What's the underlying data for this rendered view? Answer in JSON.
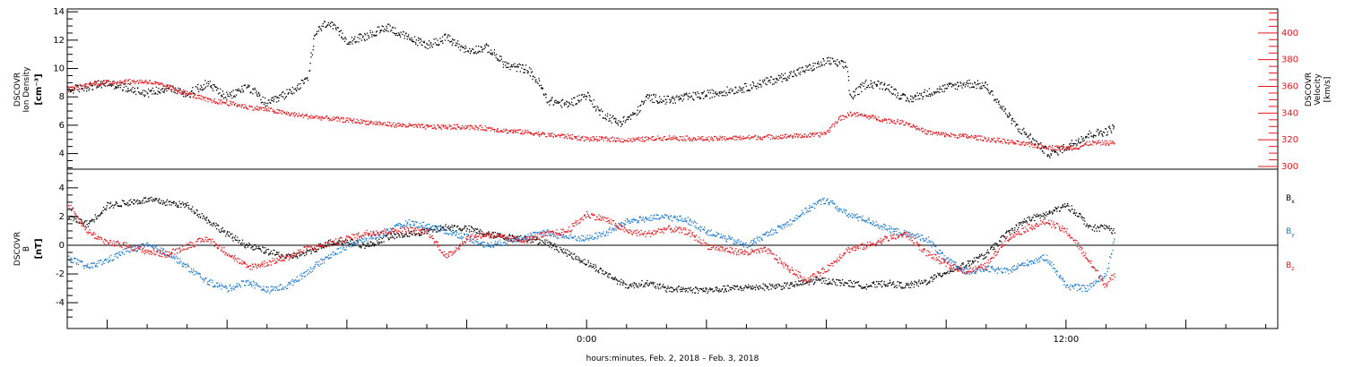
{
  "chart_data": [
    {
      "type": "scatter",
      "panel": "top",
      "title": "",
      "xlabel": "",
      "ylabel_left": {
        "line1": "DSCOVR",
        "line2": "Ion Density",
        "units": "[cm⁻³]"
      },
      "ylabel_right": {
        "line1": "DSCOVR",
        "line2": "Velocity",
        "units": "[km/s]"
      },
      "ylim_left": [
        2.9,
        14.2
      ],
      "ylim_right": [
        298,
        418
      ],
      "yticks_left": [
        4,
        6,
        8,
        10,
        12,
        14
      ],
      "yticks_right": [
        300,
        320,
        340,
        360,
        380,
        400
      ],
      "x_hours_range": [
        -13.0,
        17.3
      ],
      "series": [
        {
          "axis": "left",
          "color": "#000000",
          "points": [
            [
              -13.0,
              8.5
            ],
            [
              -12.0,
              9.0
            ],
            [
              -11.0,
              8.3
            ],
            [
              -10.5,
              8.7
            ],
            [
              -10.0,
              8.2
            ],
            [
              -9.5,
              9.0
            ],
            [
              -9.0,
              8.0
            ],
            [
              -8.5,
              8.8
            ],
            [
              -8.0,
              7.5
            ],
            [
              -7.5,
              8.3
            ],
            [
              -7.0,
              9.2
            ],
            [
              -6.8,
              12.5
            ],
            [
              -6.5,
              13.3
            ],
            [
              -6.0,
              12.0
            ],
            [
              -5.5,
              12.3
            ],
            [
              -5.0,
              13.0
            ],
            [
              -4.5,
              12.2
            ],
            [
              -4.0,
              11.7
            ],
            [
              -3.5,
              12.2
            ],
            [
              -3.0,
              11.3
            ],
            [
              -2.5,
              11.5
            ],
            [
              -2.0,
              10.2
            ],
            [
              -1.5,
              10.0
            ],
            [
              -1.2,
              9.0
            ],
            [
              -1.0,
              7.8
            ],
            [
              -0.5,
              7.5
            ],
            [
              0.0,
              8.2
            ],
            [
              0.3,
              7.0
            ],
            [
              0.8,
              6.2
            ],
            [
              1.2,
              6.8
            ],
            [
              1.5,
              8.0
            ],
            [
              2.0,
              7.8
            ],
            [
              3.0,
              8.2
            ],
            [
              4.0,
              8.7
            ],
            [
              5.0,
              9.5
            ],
            [
              5.8,
              10.3
            ],
            [
              6.0,
              10.6
            ],
            [
              6.5,
              10.2
            ],
            [
              6.6,
              8.0
            ],
            [
              7.0,
              9.0
            ],
            [
              7.5,
              8.8
            ],
            [
              8.0,
              7.8
            ],
            [
              8.5,
              8.3
            ],
            [
              9.0,
              8.7
            ],
            [
              9.5,
              9.0
            ],
            [
              10.0,
              8.8
            ],
            [
              10.4,
              7.2
            ],
            [
              10.8,
              5.8
            ],
            [
              11.0,
              5.4
            ],
            [
              11.3,
              4.6
            ],
            [
              11.6,
              4.0
            ],
            [
              12.0,
              4.5
            ],
            [
              12.3,
              5.0
            ],
            [
              12.6,
              5.4
            ],
            [
              13.0,
              5.6
            ],
            [
              13.2,
              5.9
            ]
          ]
        },
        {
          "axis": "right",
          "color": "#e8141b",
          "points": [
            [
              -13.0,
              358
            ],
            [
              -12.3,
              363
            ],
            [
              -11.5,
              364
            ],
            [
              -11.0,
              364
            ],
            [
              -10.5,
              360
            ],
            [
              -10.0,
              355
            ],
            [
              -9.5,
              350
            ],
            [
              -9.0,
              348
            ],
            [
              -8.5,
              345
            ],
            [
              -8.0,
              343
            ],
            [
              -7.5,
              340
            ],
            [
              -7.0,
              338
            ],
            [
              -6.0,
              335
            ],
            [
              -5.0,
              332
            ],
            [
              -4.0,
              330
            ],
            [
              -3.0,
              330
            ],
            [
              -2.5,
              329
            ],
            [
              -2.0,
              327
            ],
            [
              -1.5,
              326
            ],
            [
              -1.0,
              324
            ],
            [
              -0.5,
              323
            ],
            [
              0.0,
              321
            ],
            [
              0.5,
              321
            ],
            [
              1.0,
              320
            ],
            [
              2.0,
              322
            ],
            [
              3.0,
              321
            ],
            [
              4.0,
              322
            ],
            [
              5.0,
              323
            ],
            [
              5.8,
              324
            ],
            [
              6.0,
              326
            ],
            [
              6.3,
              336
            ],
            [
              6.6,
              340
            ],
            [
              7.0,
              338
            ],
            [
              7.5,
              335
            ],
            [
              8.0,
              333
            ],
            [
              8.5,
              326
            ],
            [
              9.0,
              324
            ],
            [
              9.5,
              323
            ],
            [
              10.0,
              321
            ],
            [
              10.5,
              319
            ],
            [
              11.0,
              317
            ],
            [
              11.5,
              315
            ],
            [
              12.0,
              314
            ],
            [
              12.3,
              315
            ],
            [
              12.6,
              318
            ],
            [
              13.0,
              318
            ],
            [
              13.2,
              318
            ]
          ]
        }
      ]
    },
    {
      "type": "scatter",
      "panel": "bottom",
      "title": "",
      "xlabel": "hours:minutes, Feb.  2, 2018 – Feb.  3, 2018",
      "ylabel_left": {
        "line1": "DSCOVR",
        "line2": "B",
        "units": "[nT]"
      },
      "ylim": [
        -5.8,
        5.3
      ],
      "yticks": [
        -4,
        -2,
        0,
        2,
        4
      ],
      "zero_line": true,
      "x_hours_range": [
        -13.0,
        17.3
      ],
      "xticks": [
        {
          "hour": 0.0,
          "label": "0:00"
        },
        {
          "hour": 12.0,
          "label": "12:00"
        }
      ],
      "series": [
        {
          "name": "Bx",
          "color": "#000000",
          "legend": {
            "base": "B",
            "sub": "x"
          },
          "points": [
            [
              -13.0,
              2.0
            ],
            [
              -12.5,
              1.5
            ],
            [
              -12.0,
              2.8
            ],
            [
              -11.0,
              3.2
            ],
            [
              -10.0,
              2.8
            ],
            [
              -9.5,
              1.8
            ],
            [
              -9.0,
              0.8
            ],
            [
              -8.5,
              0.0
            ],
            [
              -7.5,
              -0.8
            ],
            [
              -7.0,
              -0.5
            ],
            [
              -6.5,
              0.2
            ],
            [
              -6.0,
              0.3
            ],
            [
              -5.5,
              0.0
            ],
            [
              -5.0,
              0.6
            ],
            [
              -4.5,
              0.8
            ],
            [
              -4.0,
              1.0
            ],
            [
              -3.5,
              1.3
            ],
            [
              -3.0,
              1.2
            ],
            [
              -2.5,
              0.8
            ],
            [
              -2.0,
              0.6
            ],
            [
              -1.5,
              0.5
            ],
            [
              -1.0,
              0.2
            ],
            [
              -0.5,
              -0.5
            ],
            [
              0.0,
              -1.2
            ],
            [
              0.5,
              -2.0
            ],
            [
              1.0,
              -2.8
            ],
            [
              1.5,
              -2.6
            ],
            [
              2.0,
              -3.0
            ],
            [
              3.0,
              -3.1
            ],
            [
              4.0,
              -2.9
            ],
            [
              5.0,
              -2.8
            ],
            [
              5.8,
              -2.4
            ],
            [
              6.5,
              -2.6
            ],
            [
              7.0,
              -2.8
            ],
            [
              7.5,
              -2.6
            ],
            [
              8.0,
              -2.8
            ],
            [
              8.5,
              -2.5
            ],
            [
              9.0,
              -1.8
            ],
            [
              9.5,
              -1.3
            ],
            [
              10.0,
              -0.6
            ],
            [
              10.5,
              0.8
            ],
            [
              11.0,
              1.8
            ],
            [
              11.5,
              2.2
            ],
            [
              12.0,
              2.8
            ],
            [
              12.3,
              2.2
            ],
            [
              12.6,
              1.2
            ],
            [
              13.0,
              1.3
            ],
            [
              13.2,
              1.0
            ]
          ]
        },
        {
          "name": "By",
          "color": "#1a78d0",
          "legend": {
            "base": "B",
            "sub": "y"
          },
          "points": [
            [
              -13.0,
              -0.8
            ],
            [
              -12.5,
              -1.5
            ],
            [
              -12.0,
              -1.0
            ],
            [
              -11.5,
              -0.3
            ],
            [
              -11.0,
              0.0
            ],
            [
              -10.5,
              -0.5
            ],
            [
              -10.0,
              -1.5
            ],
            [
              -9.5,
              -2.5
            ],
            [
              -9.0,
              -3.0
            ],
            [
              -8.5,
              -2.5
            ],
            [
              -8.0,
              -3.1
            ],
            [
              -7.5,
              -2.8
            ],
            [
              -7.0,
              -1.8
            ],
            [
              -6.5,
              -0.8
            ],
            [
              -6.0,
              0.0
            ],
            [
              -5.5,
              0.5
            ],
            [
              -5.0,
              1.0
            ],
            [
              -4.5,
              1.6
            ],
            [
              -4.0,
              1.4
            ],
            [
              -3.5,
              1.0
            ],
            [
              -3.0,
              0.6
            ],
            [
              -2.5,
              0.0
            ],
            [
              -2.0,
              0.3
            ],
            [
              -1.5,
              0.7
            ],
            [
              -1.0,
              0.9
            ],
            [
              -0.5,
              0.6
            ],
            [
              0.0,
              0.5
            ],
            [
              0.5,
              0.9
            ],
            [
              1.0,
              1.7
            ],
            [
              1.5,
              1.9
            ],
            [
              2.0,
              2.0
            ],
            [
              2.5,
              1.8
            ],
            [
              3.0,
              1.0
            ],
            [
              3.5,
              0.5
            ],
            [
              4.0,
              0.0
            ],
            [
              4.5,
              0.8
            ],
            [
              5.0,
              1.5
            ],
            [
              5.5,
              2.5
            ],
            [
              5.8,
              3.0
            ],
            [
              6.0,
              3.2
            ],
            [
              6.5,
              2.2
            ],
            [
              7.0,
              1.8
            ],
            [
              7.5,
              1.2
            ],
            [
              8.0,
              0.8
            ],
            [
              8.5,
              0.5
            ],
            [
              9.0,
              -1.0
            ],
            [
              9.5,
              -1.8
            ],
            [
              10.0,
              -1.6
            ],
            [
              10.5,
              -1.8
            ],
            [
              11.0,
              -1.2
            ],
            [
              11.5,
              -0.8
            ],
            [
              12.0,
              -2.8
            ],
            [
              12.5,
              -3.0
            ],
            [
              13.0,
              -2.0
            ],
            [
              13.2,
              0.5
            ]
          ]
        },
        {
          "name": "Bz",
          "color": "#e8141b",
          "legend": {
            "base": "B",
            "sub": "z"
          },
          "points": [
            [
              -13.0,
              3.0
            ],
            [
              -12.5,
              1.0
            ],
            [
              -12.0,
              0.2
            ],
            [
              -11.5,
              0.0
            ],
            [
              -11.0,
              -0.4
            ],
            [
              -10.5,
              -0.6
            ],
            [
              -10.0,
              0.0
            ],
            [
              -9.5,
              0.5
            ],
            [
              -9.0,
              -0.5
            ],
            [
              -8.5,
              -1.5
            ],
            [
              -8.0,
              -1.2
            ],
            [
              -7.5,
              -0.8
            ],
            [
              -7.0,
              -0.2
            ],
            [
              -6.5,
              0.1
            ],
            [
              -6.0,
              0.5
            ],
            [
              -5.5,
              0.9
            ],
            [
              -5.0,
              1.0
            ],
            [
              -4.5,
              1.1
            ],
            [
              -4.0,
              1.0
            ],
            [
              -3.5,
              -0.8
            ],
            [
              -3.0,
              0.5
            ],
            [
              -2.5,
              0.8
            ],
            [
              -2.0,
              0.5
            ],
            [
              -1.5,
              0.4
            ],
            [
              -1.0,
              0.8
            ],
            [
              -0.5,
              1.0
            ],
            [
              0.0,
              2.2
            ],
            [
              0.5,
              1.8
            ],
            [
              1.0,
              1.0
            ],
            [
              1.5,
              0.8
            ],
            [
              2.0,
              1.2
            ],
            [
              2.5,
              1.0
            ],
            [
              3.0,
              0.0
            ],
            [
              3.5,
              -0.3
            ],
            [
              4.0,
              -0.5
            ],
            [
              4.5,
              -0.3
            ],
            [
              5.0,
              -1.5
            ],
            [
              5.5,
              -2.4
            ],
            [
              6.0,
              -1.6
            ],
            [
              6.5,
              -0.3
            ],
            [
              7.0,
              0.0
            ],
            [
              7.5,
              0.5
            ],
            [
              8.0,
              0.8
            ],
            [
              8.5,
              -0.5
            ],
            [
              9.0,
              -1.3
            ],
            [
              9.5,
              -1.8
            ],
            [
              10.0,
              -1.4
            ],
            [
              10.5,
              0.5
            ],
            [
              11.0,
              1.2
            ],
            [
              11.5,
              1.7
            ],
            [
              12.0,
              1.0
            ],
            [
              12.3,
              0.0
            ],
            [
              12.6,
              -1.2
            ],
            [
              13.0,
              -2.8
            ],
            [
              13.2,
              -2.0
            ]
          ]
        }
      ]
    }
  ]
}
